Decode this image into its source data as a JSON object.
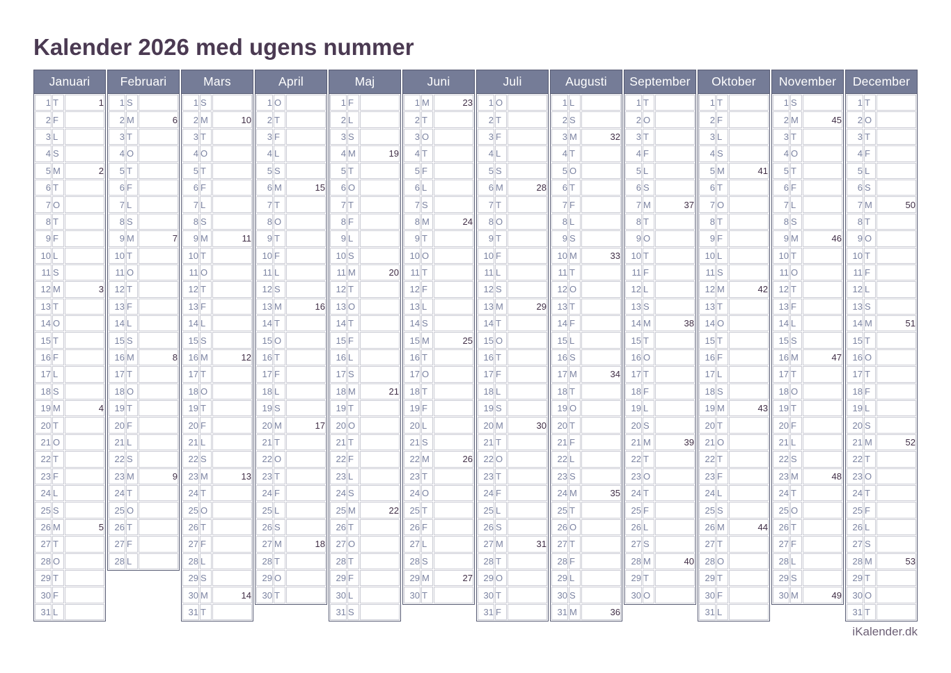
{
  "title": "Kalender 2026 med ugens nummer",
  "footer": "iKalender.dk",
  "colors": {
    "header_bg": "#757c97",
    "header_text": "#ffffff",
    "outer_border": "#565a72",
    "cell_border": "#c9cad3",
    "shaded_cell_bg": "#ececef",
    "day_text": "#7b83a1",
    "week_number_text": "#3f2d45",
    "title_text": "#4b3a52",
    "footer_text": "#6c5f75"
  },
  "calendar": {
    "year": "2026",
    "months": [
      {
        "name": "Januari",
        "letters": "TFLSMTOTFLSMTOTFLSMTOTFLSMTOTFL",
        "weeks": {
          "1": 1,
          "5": 2,
          "12": 3,
          "19": 4,
          "26": 5
        },
        "shaded_days": [
          1,
          4,
          11,
          18,
          25
        ]
      },
      {
        "name": "Februari",
        "letters": "SMTOTFLSMTOTFLSMTOTFLSMTOTFL",
        "weeks": {
          "2": 6,
          "9": 7,
          "16": 8,
          "23": 9
        },
        "shaded_days": [
          1,
          8,
          15,
          22
        ]
      },
      {
        "name": "Mars",
        "letters": "SMTOTFLSMTOTFLSMTOTFLSMTOTFLSMT",
        "weeks": {
          "2": 10,
          "9": 11,
          "16": 12,
          "23": 13,
          "30": 14
        },
        "shaded_days": [
          1,
          8,
          15,
          22,
          29
        ]
      },
      {
        "name": "April",
        "letters": "OTFLSMTOTFLSMTOTFLSMTOTFLSMTOT",
        "weeks": {
          "6": 15,
          "13": 16,
          "20": 17,
          "27": 18
        },
        "shaded_days": [
          2,
          3,
          5,
          6,
          12,
          19,
          26
        ]
      },
      {
        "name": "Maj",
        "letters": "FLSMTOTFLSMTOTFLSMTOTFLSMTOTFLS",
        "weeks": {
          "4": 19,
          "11": 20,
          "18": 21,
          "25": 22
        },
        "shaded_days": [
          1,
          3,
          10,
          14,
          17,
          24,
          25,
          31
        ]
      },
      {
        "name": "Juni",
        "letters": "MTOTFLSMTOTFLSMTOTFLSMTOTFLSMT",
        "weeks": {
          "1": 23,
          "8": 24,
          "15": 25,
          "22": 26,
          "29": 27
        },
        "shaded_days": [
          5,
          7,
          14,
          21,
          28
        ]
      },
      {
        "name": "Juli",
        "letters": "OTFLSMTOTFLSMTOTFLSMTOTFLSMTOTF",
        "weeks": {
          "6": 28,
          "13": 29,
          "20": 30,
          "27": 31
        },
        "shaded_days": [
          5,
          12,
          19,
          26
        ]
      },
      {
        "name": "Augusti",
        "letters": "LSMTOTFLSMTOTFLSMTOTFLSMTOTFLSM",
        "weeks": {
          "3": 32,
          "10": 33,
          "17": 34,
          "24": 35,
          "31": 36
        },
        "shaded_days": [
          2,
          9,
          16,
          23,
          30
        ]
      },
      {
        "name": "September",
        "letters": "TOTFLSMTOTFLSMTOTFLSMTOTFLSMTO",
        "weeks": {
          "7": 37,
          "14": 38,
          "21": 39,
          "28": 40
        },
        "shaded_days": [
          6,
          13,
          20,
          27
        ]
      },
      {
        "name": "Oktober",
        "letters": "TFLSMTOTFLSMTOTFLSMTOTFLSMTOTFL",
        "weeks": {
          "5": 41,
          "12": 42,
          "19": 43,
          "26": 44
        },
        "shaded_days": [
          4,
          11,
          18,
          25
        ]
      },
      {
        "name": "November",
        "letters": "SMTOTFLSMTOTFLSMTOTFLSMTOTFLSM",
        "weeks": {
          "2": 45,
          "9": 46,
          "16": 47,
          "23": 48,
          "30": 49
        },
        "shaded_days": [
          1,
          8,
          15,
          22,
          29
        ]
      },
      {
        "name": "December",
        "letters": "TOTFLSMTOTFLSMTOTFLSMTOTFLSMTOT",
        "weeks": {
          "7": 50,
          "14": 51,
          "21": 52,
          "28": 53
        },
        "shaded_days": [
          6,
          13,
          20,
          24,
          25,
          26,
          27,
          31
        ]
      }
    ]
  }
}
